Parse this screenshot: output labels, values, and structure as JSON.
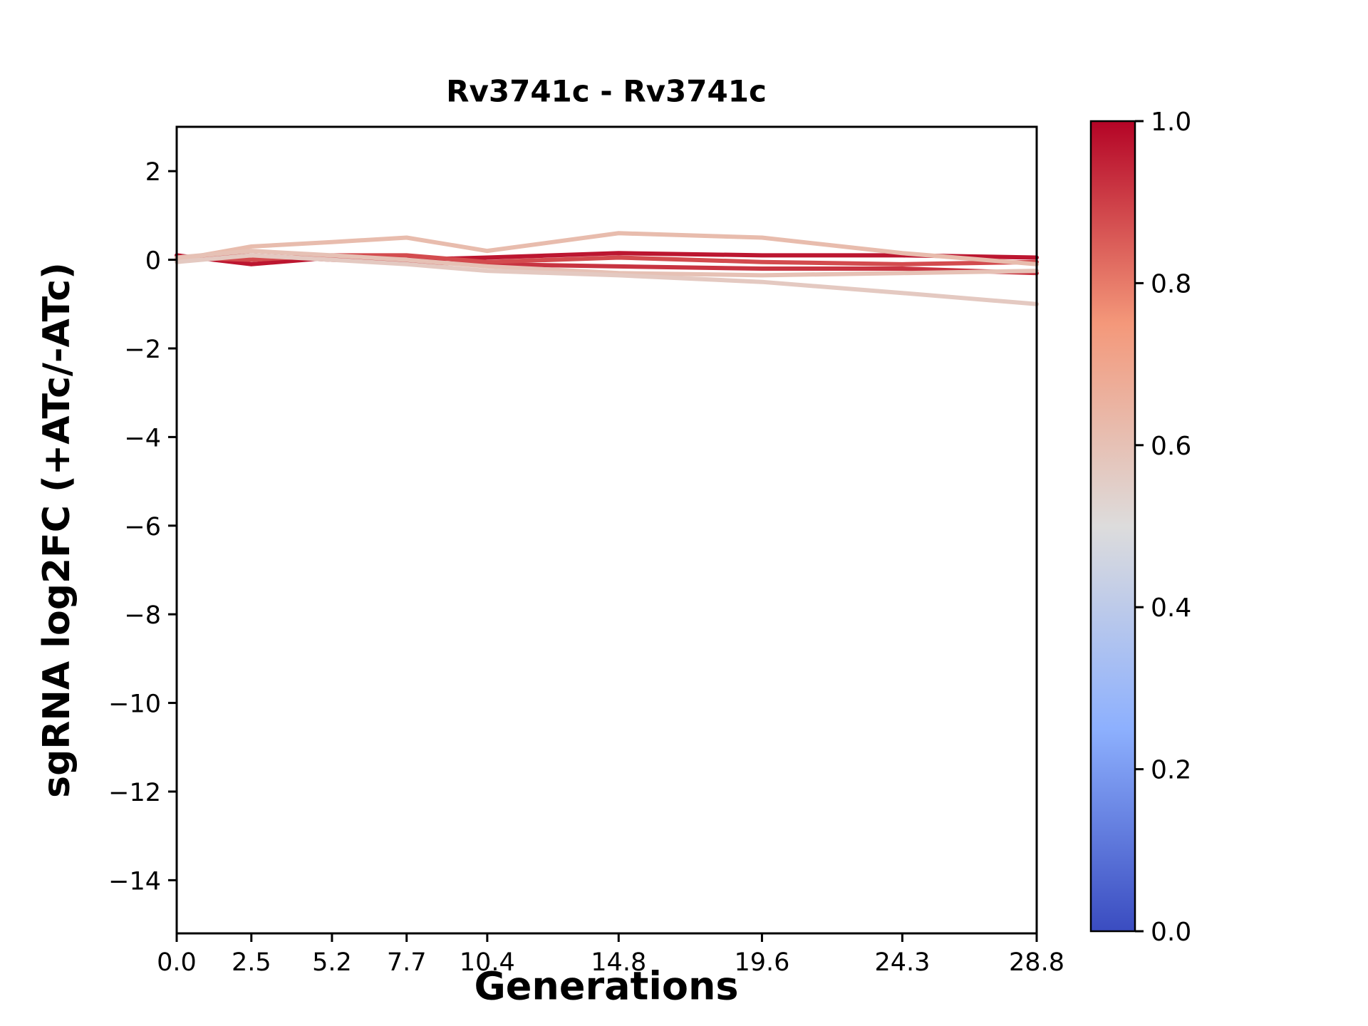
{
  "chart_data": {
    "type": "line",
    "title": "Rv3741c - Rv3741c",
    "xlabel": "Generations",
    "ylabel": "sgRNA log2FC (+ATc/-ATc)",
    "x": [
      0.0,
      2.5,
      5.2,
      7.7,
      10.4,
      14.8,
      19.6,
      24.3,
      28.8
    ],
    "xticks": [
      0.0,
      2.5,
      5.2,
      7.7,
      10.4,
      14.8,
      19.6,
      24.3,
      28.8
    ],
    "yticks": [
      2,
      0,
      -2,
      -4,
      -6,
      -8,
      -10,
      -12,
      -14
    ],
    "xlim": [
      0.0,
      28.8
    ],
    "ylim": [
      -15.2,
      3.0
    ],
    "grid": false,
    "legend": "none",
    "series": [
      {
        "colorbar_value": 0.97,
        "color": "#bc1630",
        "values": [
          0.1,
          -0.1,
          0.05,
          0.0,
          0.05,
          0.15,
          0.1,
          0.1,
          0.05
        ]
      },
      {
        "colorbar_value": 0.92,
        "color": "#c83441",
        "values": [
          0.0,
          0.1,
          0.0,
          -0.05,
          -0.1,
          -0.15,
          -0.2,
          -0.2,
          -0.3
        ]
      },
      {
        "colorbar_value": 0.88,
        "color": "#d34b4e",
        "values": [
          0.05,
          0.0,
          0.1,
          0.1,
          -0.05,
          0.05,
          -0.05,
          -0.1,
          -0.05
        ]
      },
      {
        "colorbar_value": 0.62,
        "color": "#e8bcad",
        "values": [
          0.0,
          0.3,
          0.4,
          0.5,
          0.2,
          0.6,
          0.5,
          0.15,
          -0.1
        ]
      },
      {
        "colorbar_value": 0.6,
        "color": "#e6c1b5",
        "values": [
          0.05,
          0.2,
          0.1,
          0.0,
          -0.15,
          -0.3,
          -0.35,
          -0.3,
          -0.25
        ]
      },
      {
        "colorbar_value": 0.57,
        "color": "#e4c9c1",
        "values": [
          -0.05,
          0.1,
          0.0,
          -0.1,
          -0.25,
          -0.35,
          -0.5,
          -0.75,
          -1.0
        ]
      }
    ],
    "colorbar": {
      "colormap": "coolwarm",
      "ticks": [
        0.0,
        0.2,
        0.4,
        0.6,
        0.8,
        1.0
      ],
      "range": [
        0.0,
        1.0
      ],
      "stops": [
        {
          "pos": 0.0,
          "color": "#3a4cc0"
        },
        {
          "pos": 0.25,
          "color": "#8db0fe"
        },
        {
          "pos": 0.5,
          "color": "#dddcdc"
        },
        {
          "pos": 0.75,
          "color": "#f4987a"
        },
        {
          "pos": 1.0,
          "color": "#b40426"
        }
      ]
    },
    "axis_color": "#000000"
  }
}
